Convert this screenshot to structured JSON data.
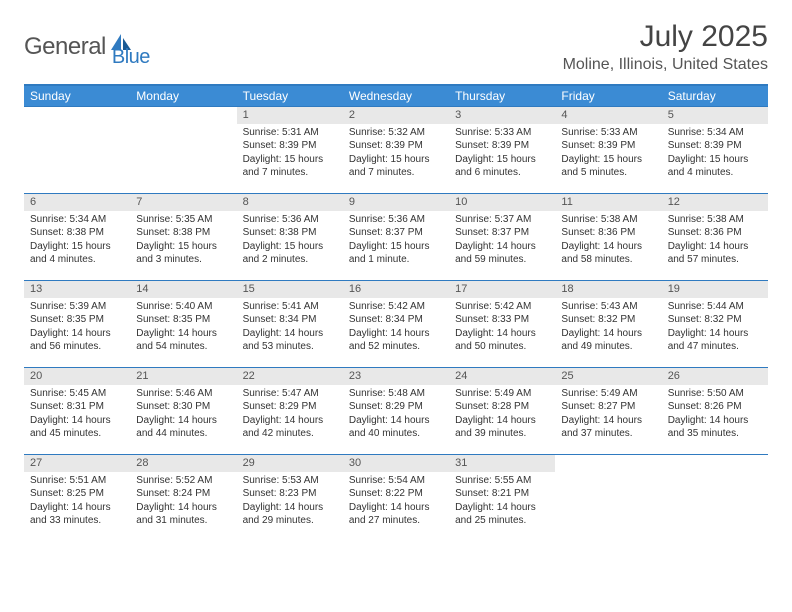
{
  "logo": {
    "text1": "General",
    "text2": "Blue"
  },
  "title": "July 2025",
  "location": "Moline, Illinois, United States",
  "colors": {
    "header_bg": "#3b8bd4",
    "border": "#2f7ac0",
    "daynum_bg": "#e8e8e8",
    "text": "#333333"
  },
  "weekdays": [
    "Sunday",
    "Monday",
    "Tuesday",
    "Wednesday",
    "Thursday",
    "Friday",
    "Saturday"
  ],
  "weeks": [
    [
      null,
      null,
      {
        "n": "1",
        "sr": "5:31 AM",
        "ss": "8:39 PM",
        "dl": "15 hours and 7 minutes."
      },
      {
        "n": "2",
        "sr": "5:32 AM",
        "ss": "8:39 PM",
        "dl": "15 hours and 7 minutes."
      },
      {
        "n": "3",
        "sr": "5:33 AM",
        "ss": "8:39 PM",
        "dl": "15 hours and 6 minutes."
      },
      {
        "n": "4",
        "sr": "5:33 AM",
        "ss": "8:39 PM",
        "dl": "15 hours and 5 minutes."
      },
      {
        "n": "5",
        "sr": "5:34 AM",
        "ss": "8:39 PM",
        "dl": "15 hours and 4 minutes."
      }
    ],
    [
      {
        "n": "6",
        "sr": "5:34 AM",
        "ss": "8:38 PM",
        "dl": "15 hours and 4 minutes."
      },
      {
        "n": "7",
        "sr": "5:35 AM",
        "ss": "8:38 PM",
        "dl": "15 hours and 3 minutes."
      },
      {
        "n": "8",
        "sr": "5:36 AM",
        "ss": "8:38 PM",
        "dl": "15 hours and 2 minutes."
      },
      {
        "n": "9",
        "sr": "5:36 AM",
        "ss": "8:37 PM",
        "dl": "15 hours and 1 minute."
      },
      {
        "n": "10",
        "sr": "5:37 AM",
        "ss": "8:37 PM",
        "dl": "14 hours and 59 minutes."
      },
      {
        "n": "11",
        "sr": "5:38 AM",
        "ss": "8:36 PM",
        "dl": "14 hours and 58 minutes."
      },
      {
        "n": "12",
        "sr": "5:38 AM",
        "ss": "8:36 PM",
        "dl": "14 hours and 57 minutes."
      }
    ],
    [
      {
        "n": "13",
        "sr": "5:39 AM",
        "ss": "8:35 PM",
        "dl": "14 hours and 56 minutes."
      },
      {
        "n": "14",
        "sr": "5:40 AM",
        "ss": "8:35 PM",
        "dl": "14 hours and 54 minutes."
      },
      {
        "n": "15",
        "sr": "5:41 AM",
        "ss": "8:34 PM",
        "dl": "14 hours and 53 minutes."
      },
      {
        "n": "16",
        "sr": "5:42 AM",
        "ss": "8:34 PM",
        "dl": "14 hours and 52 minutes."
      },
      {
        "n": "17",
        "sr": "5:42 AM",
        "ss": "8:33 PM",
        "dl": "14 hours and 50 minutes."
      },
      {
        "n": "18",
        "sr": "5:43 AM",
        "ss": "8:32 PM",
        "dl": "14 hours and 49 minutes."
      },
      {
        "n": "19",
        "sr": "5:44 AM",
        "ss": "8:32 PM",
        "dl": "14 hours and 47 minutes."
      }
    ],
    [
      {
        "n": "20",
        "sr": "5:45 AM",
        "ss": "8:31 PM",
        "dl": "14 hours and 45 minutes."
      },
      {
        "n": "21",
        "sr": "5:46 AM",
        "ss": "8:30 PM",
        "dl": "14 hours and 44 minutes."
      },
      {
        "n": "22",
        "sr": "5:47 AM",
        "ss": "8:29 PM",
        "dl": "14 hours and 42 minutes."
      },
      {
        "n": "23",
        "sr": "5:48 AM",
        "ss": "8:29 PM",
        "dl": "14 hours and 40 minutes."
      },
      {
        "n": "24",
        "sr": "5:49 AM",
        "ss": "8:28 PM",
        "dl": "14 hours and 39 minutes."
      },
      {
        "n": "25",
        "sr": "5:49 AM",
        "ss": "8:27 PM",
        "dl": "14 hours and 37 minutes."
      },
      {
        "n": "26",
        "sr": "5:50 AM",
        "ss": "8:26 PM",
        "dl": "14 hours and 35 minutes."
      }
    ],
    [
      {
        "n": "27",
        "sr": "5:51 AM",
        "ss": "8:25 PM",
        "dl": "14 hours and 33 minutes."
      },
      {
        "n": "28",
        "sr": "5:52 AM",
        "ss": "8:24 PM",
        "dl": "14 hours and 31 minutes."
      },
      {
        "n": "29",
        "sr": "5:53 AM",
        "ss": "8:23 PM",
        "dl": "14 hours and 29 minutes."
      },
      {
        "n": "30",
        "sr": "5:54 AM",
        "ss": "8:22 PM",
        "dl": "14 hours and 27 minutes."
      },
      {
        "n": "31",
        "sr": "5:55 AM",
        "ss": "8:21 PM",
        "dl": "14 hours and 25 minutes."
      },
      null,
      null
    ]
  ],
  "labels": {
    "sunrise": "Sunrise:",
    "sunset": "Sunset:",
    "daylight": "Daylight:"
  }
}
